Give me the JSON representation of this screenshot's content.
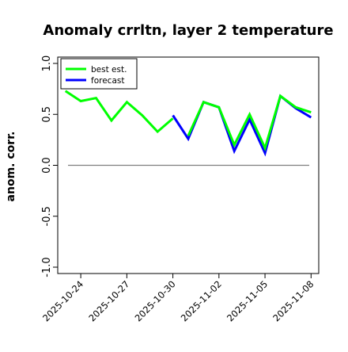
{
  "chart_data": {
    "type": "line",
    "title": "Anomaly crrltn, layer 2 temperature",
    "ylabel": "anom. corr.",
    "xlabel": "",
    "ylim": [
      -1.0,
      1.0
    ],
    "xlim": [
      "2025-10-22T12:00",
      "2025-11-08T12:00"
    ],
    "y_ticks": [
      "-1.0",
      "-0.5",
      "0.0",
      "0.5",
      "1.0"
    ],
    "x_ticks": [
      {
        "label": "2025-10-24",
        "x": "2025-10-24",
        "color": "#000000"
      },
      {
        "label": "2025-10-27",
        "x": "2025-10-27",
        "color": "#000000"
      },
      {
        "label": "2025-10-30",
        "x": "2025-10-30",
        "color": "#228b22"
      },
      {
        "label": "2025-11-02",
        "x": "2025-11-02",
        "color": "#000000"
      },
      {
        "label": "2025-11-05",
        "x": "2025-11-05",
        "color": "#000000"
      },
      {
        "label": "2025-11-08",
        "x": "2025-11-08",
        "color": "#000000"
      }
    ],
    "reference_line": {
      "y": 0.0,
      "color": "#808080"
    },
    "legend": {
      "placement": "top-left"
    },
    "series": [
      {
        "name": "best est.",
        "color": "#00ff00",
        "points": [
          {
            "x": "2025-10-23",
            "y": 0.73
          },
          {
            "x": "2025-10-24",
            "y": 0.63
          },
          {
            "x": "2025-10-25",
            "y": 0.66
          },
          {
            "x": "2025-10-26",
            "y": 0.44
          },
          {
            "x": "2025-10-27",
            "y": 0.62
          },
          {
            "x": "2025-10-28",
            "y": 0.49
          },
          {
            "x": "2025-10-29",
            "y": 0.33
          },
          {
            "x": "2025-10-30",
            "y": 0.46
          }
        ]
      },
      {
        "name": "forecast",
        "color": "#0000ff",
        "points": [
          {
            "x": "2025-10-30",
            "y": 0.49
          },
          {
            "x": "2025-10-31",
            "y": 0.26
          },
          {
            "x": "2025-11-01",
            "y": 0.62
          },
          {
            "x": "2025-11-02",
            "y": 0.57
          },
          {
            "x": "2025-11-03",
            "y": 0.14
          },
          {
            "x": "2025-11-04",
            "y": 0.45
          },
          {
            "x": "2025-11-05",
            "y": 0.12
          },
          {
            "x": "2025-11-06",
            "y": 0.68
          },
          {
            "x": "2025-11-07",
            "y": 0.56
          },
          {
            "x": "2025-11-08",
            "y": 0.47
          }
        ]
      },
      {
        "name": "",
        "color": "#00ff00",
        "points": [
          {
            "x": "2025-10-31",
            "y": 0.29
          },
          {
            "x": "2025-11-01",
            "y": 0.62
          },
          {
            "x": "2025-11-02",
            "y": 0.57
          },
          {
            "x": "2025-11-03",
            "y": 0.2
          },
          {
            "x": "2025-11-04",
            "y": 0.5
          },
          {
            "x": "2025-11-05",
            "y": 0.17
          },
          {
            "x": "2025-11-06",
            "y": 0.68
          },
          {
            "x": "2025-11-07",
            "y": 0.57
          },
          {
            "x": "2025-11-08",
            "y": 0.52
          }
        ]
      }
    ]
  }
}
